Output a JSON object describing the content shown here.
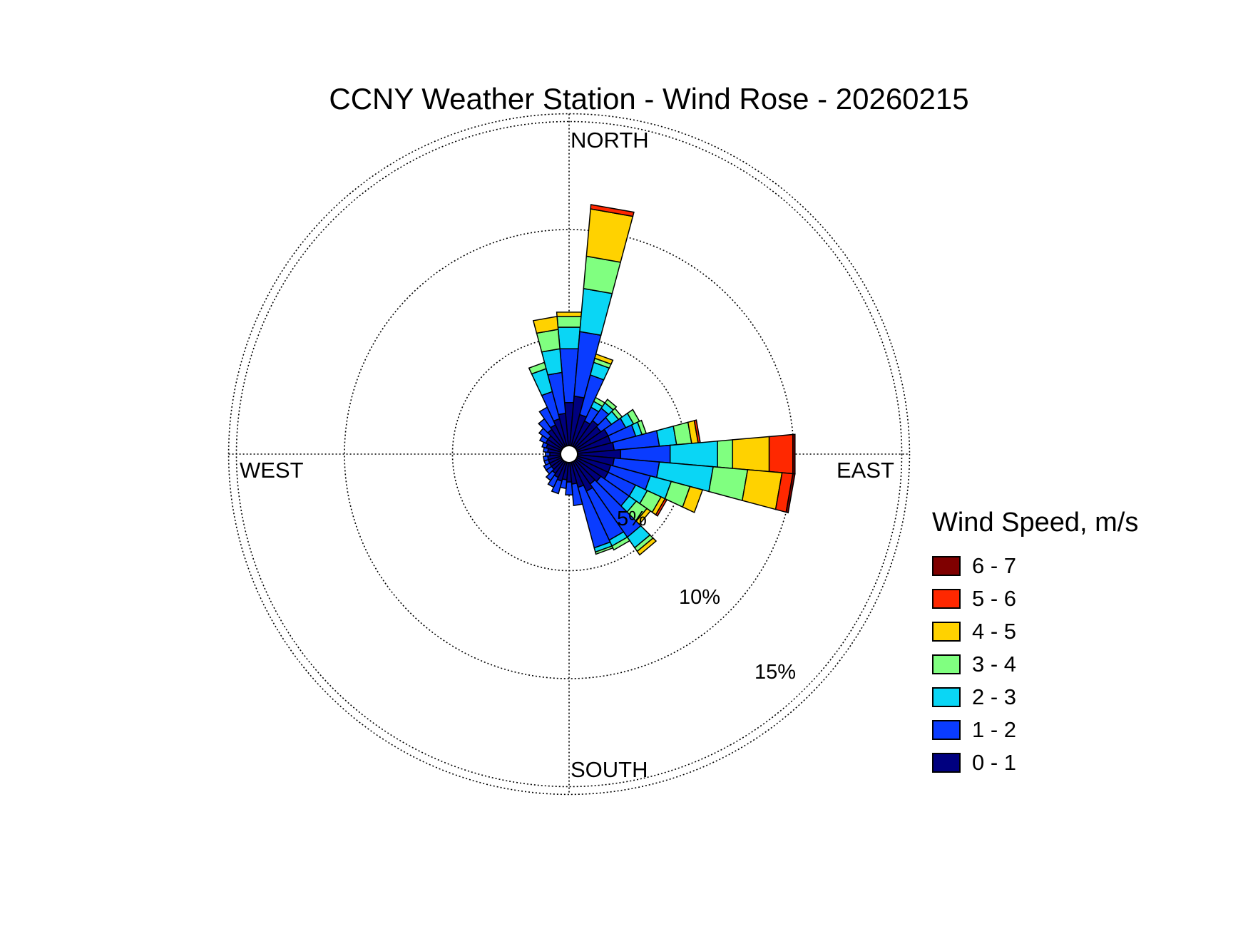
{
  "chart_data": {
    "type": "wind-rose",
    "title": "CCNY Weather Station - Wind Rose - 20260215",
    "compass_labels": {
      "north": "NORTH",
      "east": "EAST",
      "south": "SOUTH",
      "west": "WEST"
    },
    "ring_labels": [
      "5%",
      "10%",
      "15%"
    ],
    "rings_pct": [
      5,
      10,
      15
    ],
    "grid": true,
    "legend_title": "Wind Speed, m/s",
    "legend_position": "right",
    "speed_bins": [
      {
        "label": "0 - 1",
        "color": "#00007f"
      },
      {
        "label": "1 - 2",
        "color": "#0a3cff"
      },
      {
        "label": "2 - 3",
        "color": "#0ad6f5"
      },
      {
        "label": "3 - 4",
        "color": "#80ff80"
      },
      {
        "label": "4 - 5",
        "color": "#ffd200"
      },
      {
        "label": "5 - 6",
        "color": "#ff2800"
      },
      {
        "label": "6 - 7",
        "color": "#7f0000"
      }
    ],
    "sectors": [
      {
        "direction_deg": 0,
        "cumulative_pct": [
          2.0,
          4.5,
          5.5,
          6.0,
          6.2
        ]
      },
      {
        "direction_deg": 10,
        "cumulative_pct": [
          2.3,
          5.3,
          7.3,
          8.8,
          11.0,
          11.2
        ]
      },
      {
        "direction_deg": 20,
        "cumulative_pct": [
          1.5,
          3.4,
          4.0,
          4.2,
          4.4
        ]
      },
      {
        "direction_deg": 30,
        "cumulative_pct": [
          1.3,
          2.0,
          2.3,
          2.5
        ]
      },
      {
        "direction_deg": 40,
        "cumulative_pct": [
          1.5,
          2.2,
          2.5,
          2.7
        ]
      },
      {
        "direction_deg": 50,
        "cumulative_pct": [
          1.4,
          2.0,
          2.4,
          2.6
        ]
      },
      {
        "direction_deg": 60,
        "cumulative_pct": [
          1.6,
          2.5,
          2.9,
          3.2
        ]
      },
      {
        "direction_deg": 70,
        "cumulative_pct": [
          1.6,
          2.8,
          3.1,
          3.3
        ]
      },
      {
        "direction_deg": 80,
        "cumulative_pct": [
          1.7,
          3.8,
          4.6,
          5.3,
          5.6,
          5.7
        ]
      },
      {
        "direction_deg": 90,
        "cumulative_pct": [
          2.0,
          4.3,
          6.5,
          7.2,
          8.9,
          10.0,
          10.1
        ]
      },
      {
        "direction_deg": 100,
        "cumulative_pct": [
          1.7,
          3.8,
          6.3,
          7.9,
          9.5,
          10.0,
          10.1
        ]
      },
      {
        "direction_deg": 110,
        "cumulative_pct": [
          1.6,
          3.5,
          4.5,
          5.4,
          6.0
        ]
      },
      {
        "direction_deg": 120,
        "cumulative_pct": [
          1.6,
          3.0,
          3.6,
          4.3,
          4.5,
          4.6
        ]
      },
      {
        "direction_deg": 130,
        "cumulative_pct": [
          1.4,
          3.0,
          3.4,
          4.0,
          4.2
        ]
      },
      {
        "direction_deg": 140,
        "cumulative_pct": [
          1.3,
          4.3,
          4.9,
          5.1,
          5.3
        ]
      },
      {
        "direction_deg": 150,
        "cumulative_pct": [
          1.5,
          4.0,
          4.3,
          4.5
        ]
      },
      {
        "direction_deg": 160,
        "cumulative_pct": [
          1.2,
          4.1,
          4.3,
          4.4
        ]
      },
      {
        "direction_deg": 170,
        "cumulative_pct": [
          1.0,
          2.0
        ]
      },
      {
        "direction_deg": 180,
        "cumulative_pct": [
          0.9,
          1.5
        ]
      },
      {
        "direction_deg": 190,
        "cumulative_pct": [
          0.8,
          1.2
        ]
      },
      {
        "direction_deg": 200,
        "cumulative_pct": [
          0.9,
          1.5
        ]
      },
      {
        "direction_deg": 210,
        "cumulative_pct": [
          0.8,
          1.3
        ]
      },
      {
        "direction_deg": 220,
        "cumulative_pct": [
          0.7,
          1.1
        ]
      },
      {
        "direction_deg": 230,
        "cumulative_pct": [
          0.6,
          0.9
        ]
      },
      {
        "direction_deg": 240,
        "cumulative_pct": [
          0.6,
          0.9
        ]
      },
      {
        "direction_deg": 250,
        "cumulative_pct": [
          0.6,
          0.8
        ]
      },
      {
        "direction_deg": 260,
        "cumulative_pct": [
          0.6,
          0.8
        ]
      },
      {
        "direction_deg": 270,
        "cumulative_pct": [
          0.5,
          0.7
        ]
      },
      {
        "direction_deg": 280,
        "cumulative_pct": [
          0.6,
          0.8
        ]
      },
      {
        "direction_deg": 290,
        "cumulative_pct": [
          0.7,
          0.9
        ]
      },
      {
        "direction_deg": 300,
        "cumulative_pct": [
          0.8,
          1.1
        ]
      },
      {
        "direction_deg": 310,
        "cumulative_pct": [
          0.8,
          1.3
        ]
      },
      {
        "direction_deg": 320,
        "cumulative_pct": [
          1.0,
          1.6
        ]
      },
      {
        "direction_deg": 330,
        "cumulative_pct": [
          1.1,
          2.0
        ]
      },
      {
        "direction_deg": 340,
        "cumulative_pct": [
          1.3,
          2.6,
          3.7,
          4.0
        ]
      },
      {
        "direction_deg": 350,
        "cumulative_pct": [
          1.5,
          3.4,
          4.5,
          5.4,
          6.0
        ]
      }
    ]
  }
}
